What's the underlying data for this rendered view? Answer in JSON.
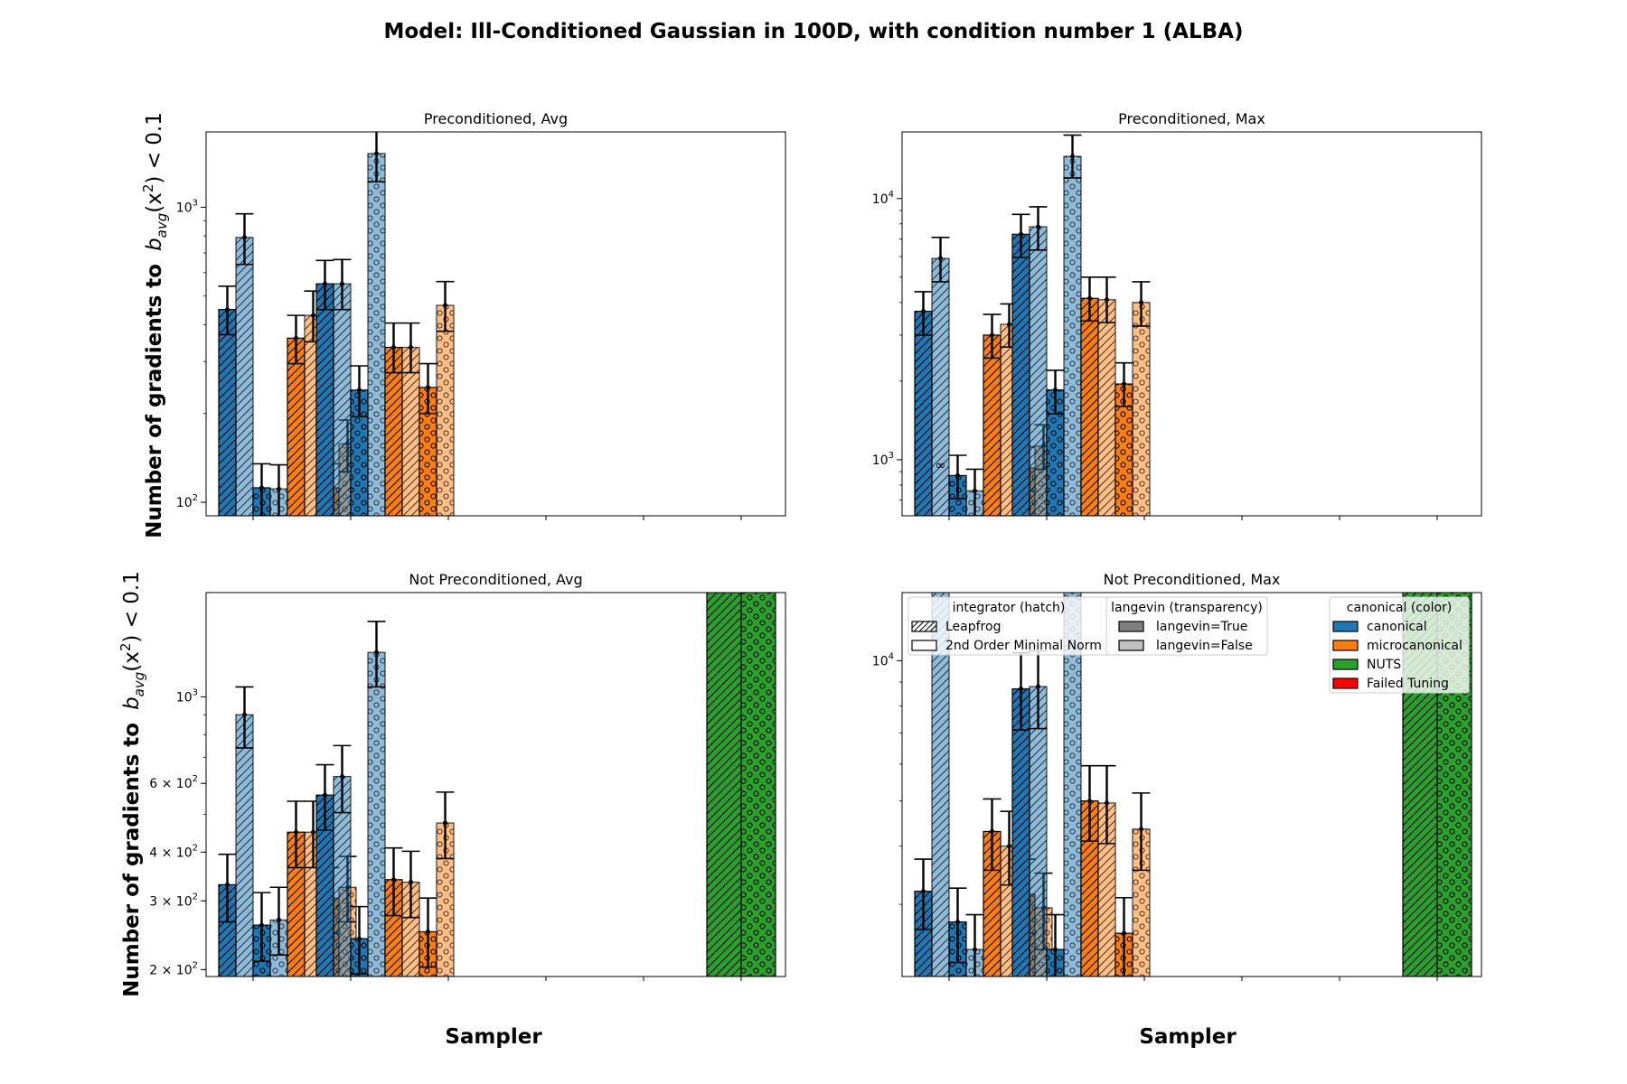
{
  "figure": {
    "title": "Model: Ill-Conditioned Gaussian in 100D, with condition number 1 (ALBA)",
    "ylabel_bold": "Number of gradients to",
    "ylabel_math_b": "b",
    "ylabel_math_sub": "avg",
    "ylabel_math_rest": "(x",
    "ylabel_math_sup": "2",
    "ylabel_math_tail": ") < 0.1",
    "xlabel": "Sampler"
  },
  "colors": {
    "canonical": "#1f77b4",
    "microcanonical": "#ff7f0e",
    "NUTS": "#2ca02c",
    "Failed Tuning": "#ff0000",
    "edge": "#000000"
  },
  "legend": {
    "integrator": {
      "title": "integrator (hatch)",
      "entries": [
        {
          "label": "Leapfrog",
          "hatch": "diag"
        },
        {
          "label": "2nd Order Minimal Norm",
          "hatch": "none"
        }
      ]
    },
    "langevin": {
      "title": "langevin (transparency)",
      "entries": [
        {
          "label": "langevin=True",
          "alpha": 1.0
        },
        {
          "label": "langevin=False",
          "alpha": 0.5
        }
      ]
    },
    "canonical": {
      "title": "canonical (color)",
      "entries": [
        {
          "label": "canonical",
          "color": "canonical"
        },
        {
          "label": "microcanonical",
          "color": "microcanonical"
        },
        {
          "label": "NUTS",
          "color": "NUTS"
        },
        {
          "label": "Failed Tuning",
          "color": "Failed Tuning"
        }
      ]
    }
  },
  "chart_data": [
    {
      "type": "bar",
      "title": "Preconditioned, Avg",
      "yscale": "log",
      "ylim": [
        90,
        1800
      ],
      "ylabel": "Number of gradients to b_avg(x^2) < 0.1",
      "xlabel": "Sampler",
      "yticks": [
        {
          "value": 100,
          "mant": "",
          "exp": "2"
        },
        {
          "value": 1000,
          "mant": "",
          "exp": "3"
        }
      ],
      "groups": 6,
      "series": [
        {
          "group": 0,
          "slot": 0,
          "color": "canonical",
          "hatch": "diag",
          "alpha": 1.0,
          "value": 450,
          "err": [
            370,
            540
          ]
        },
        {
          "group": 0,
          "slot": 1,
          "color": "canonical",
          "hatch": "diag",
          "alpha": 0.5,
          "value": 790,
          "err": [
            640,
            950
          ]
        },
        {
          "group": 0,
          "slot": 2,
          "color": "canonical",
          "hatch": "dots",
          "alpha": 1.0,
          "value": 112,
          "err": [
            90,
            135
          ]
        },
        {
          "group": 0,
          "slot": 3,
          "color": "canonical",
          "hatch": "dots",
          "alpha": 0.5,
          "value": 111,
          "err": [
            90,
            134
          ]
        },
        {
          "group": 0,
          "slot": 4,
          "color": "microcanonical",
          "hatch": "diag",
          "alpha": 1.0,
          "value": 360,
          "err": [
            295,
            430
          ]
        },
        {
          "group": 0,
          "slot": 5,
          "color": "microcanonical",
          "hatch": "diag",
          "alpha": 0.5,
          "value": 430,
          "err": [
            350,
            520
          ]
        },
        {
          "group": 0,
          "slot": 6,
          "color": "microcanonical",
          "hatch": "dots",
          "alpha": 1.0,
          "value": 112,
          "err": [
            90,
            135
          ]
        },
        {
          "group": 0,
          "slot": 7,
          "color": "microcanonical",
          "hatch": "dots",
          "alpha": 0.5,
          "value": 158,
          "err": [
            127,
            190
          ]
        },
        {
          "group": 1,
          "slot": 0,
          "color": "canonical",
          "hatch": "diag",
          "alpha": 1.0,
          "value": 550,
          "err": [
            450,
            660
          ]
        },
        {
          "group": 1,
          "slot": 1,
          "color": "canonical",
          "hatch": "diag",
          "alpha": 0.5,
          "value": 550,
          "err": [
            450,
            665
          ]
        },
        {
          "group": 1,
          "slot": 2,
          "color": "canonical",
          "hatch": "dots",
          "alpha": 1.0,
          "value": 240,
          "err": [
            195,
            290
          ]
        },
        {
          "group": 1,
          "slot": 3,
          "color": "canonical",
          "hatch": "dots",
          "alpha": 0.5,
          "value": 1520,
          "err": [
            1220,
            1850
          ]
        },
        {
          "group": 1,
          "slot": 4,
          "color": "microcanonical",
          "hatch": "diag",
          "alpha": 1.0,
          "value": 335,
          "err": [
            275,
            405
          ]
        },
        {
          "group": 1,
          "slot": 5,
          "color": "microcanonical",
          "hatch": "diag",
          "alpha": 0.5,
          "value": 335,
          "err": [
            275,
            405
          ]
        },
        {
          "group": 1,
          "slot": 6,
          "color": "microcanonical",
          "hatch": "dots",
          "alpha": 1.0,
          "value": 245,
          "err": [
            200,
            295
          ]
        },
        {
          "group": 1,
          "slot": 7,
          "color": "microcanonical",
          "hatch": "dots",
          "alpha": 0.5,
          "value": 465,
          "err": [
            380,
            560
          ]
        }
      ],
      "annotations": []
    },
    {
      "type": "bar",
      "title": "Preconditioned, Max",
      "yscale": "log",
      "ylim": [
        610,
        18000
      ],
      "ylabel": "",
      "xlabel": "Sampler",
      "yticks": [
        {
          "value": 1000,
          "mant": "",
          "exp": "3"
        },
        {
          "value": 10000,
          "mant": "",
          "exp": "4"
        }
      ],
      "groups": 6,
      "series": [
        {
          "group": 0,
          "slot": 0,
          "color": "canonical",
          "hatch": "diag",
          "alpha": 1.0,
          "value": 3700,
          "err": [
            3000,
            4400
          ]
        },
        {
          "group": 0,
          "slot": 1,
          "color": "canonical",
          "hatch": "diag",
          "alpha": 0.5,
          "value": 5900,
          "err": [
            4800,
            7100
          ]
        },
        {
          "group": 0,
          "slot": 2,
          "color": "canonical",
          "hatch": "dots",
          "alpha": 1.0,
          "value": 870,
          "err": [
            710,
            1040
          ]
        },
        {
          "group": 0,
          "slot": 3,
          "color": "canonical",
          "hatch": "dots",
          "alpha": 0.5,
          "value": 760,
          "err": [
            610,
            920
          ]
        },
        {
          "group": 0,
          "slot": 4,
          "color": "microcanonical",
          "hatch": "diag",
          "alpha": 1.0,
          "value": 3000,
          "err": [
            2450,
            3600
          ]
        },
        {
          "group": 0,
          "slot": 5,
          "color": "microcanonical",
          "hatch": "diag",
          "alpha": 0.5,
          "value": 3300,
          "err": [
            2700,
            3950
          ]
        },
        {
          "group": 0,
          "slot": 6,
          "color": "microcanonical",
          "hatch": "dots",
          "alpha": 1.0,
          "value": 930,
          "err": [
            760,
            1120
          ]
        },
        {
          "group": 0,
          "slot": 7,
          "color": "microcanonical",
          "hatch": "dots",
          "alpha": 0.5,
          "value": 1130,
          "err": [
            920,
            1360
          ]
        },
        {
          "group": 1,
          "slot": 0,
          "color": "canonical",
          "hatch": "diag",
          "alpha": 1.0,
          "value": 7300,
          "err": [
            5950,
            8700
          ]
        },
        {
          "group": 1,
          "slot": 1,
          "color": "canonical",
          "hatch": "diag",
          "alpha": 0.5,
          "value": 7800,
          "err": [
            6350,
            9300
          ]
        },
        {
          "group": 1,
          "slot": 2,
          "color": "canonical",
          "hatch": "dots",
          "alpha": 1.0,
          "value": 1850,
          "err": [
            1500,
            2200
          ]
        },
        {
          "group": 1,
          "slot": 3,
          "color": "canonical",
          "hatch": "dots",
          "alpha": 0.5,
          "value": 14500,
          "err": [
            12000,
            17500
          ]
        },
        {
          "group": 1,
          "slot": 4,
          "color": "microcanonical",
          "hatch": "diag",
          "alpha": 1.0,
          "value": 4150,
          "err": [
            3400,
            5000
          ]
        },
        {
          "group": 1,
          "slot": 5,
          "color": "microcanonical",
          "hatch": "diag",
          "alpha": 0.5,
          "value": 4100,
          "err": [
            3350,
            5000
          ]
        },
        {
          "group": 1,
          "slot": 6,
          "color": "microcanonical",
          "hatch": "dots",
          "alpha": 1.0,
          "value": 1950,
          "err": [
            1600,
            2350
          ]
        },
        {
          "group": 1,
          "slot": 7,
          "color": "microcanonical",
          "hatch": "dots",
          "alpha": 0.5,
          "value": 4000,
          "err": [
            3250,
            4800
          ]
        }
      ],
      "annotations": [
        {
          "group": 0,
          "slot": 1,
          "text": "∞",
          "value": 920
        }
      ]
    },
    {
      "type": "bar",
      "title": "Not Preconditioned, Avg",
      "yscale": "log",
      "ylim": [
        192,
        1850
      ],
      "ylabel": "Number of gradients to b_avg(x^2) < 0.1",
      "xlabel": "Sampler",
      "yticks": [
        {
          "value": 200,
          "mant": "2 × ",
          "exp": "2"
        },
        {
          "value": 300,
          "mant": "3 × ",
          "exp": "2"
        },
        {
          "value": 400,
          "mant": "4 × ",
          "exp": "2"
        },
        {
          "value": 600,
          "mant": "6 × ",
          "exp": "2"
        },
        {
          "value": 1000,
          "mant": "",
          "exp": "3"
        }
      ],
      "groups": 6,
      "series": [
        {
          "group": 0,
          "slot": 0,
          "color": "canonical",
          "hatch": "diag",
          "alpha": 1.0,
          "value": 330,
          "err": [
            265,
            395
          ]
        },
        {
          "group": 0,
          "slot": 1,
          "color": "canonical",
          "hatch": "diag",
          "alpha": 0.5,
          "value": 900,
          "err": [
            740,
            1060
          ]
        },
        {
          "group": 0,
          "slot": 2,
          "color": "canonical",
          "hatch": "dots",
          "alpha": 1.0,
          "value": 260,
          "err": [
            210,
            315
          ]
        },
        {
          "group": 0,
          "slot": 3,
          "color": "canonical",
          "hatch": "dots",
          "alpha": 0.5,
          "value": 268,
          "err": [
            218,
            325
          ]
        },
        {
          "group": 0,
          "slot": 4,
          "color": "microcanonical",
          "hatch": "diag",
          "alpha": 1.0,
          "value": 450,
          "err": [
            365,
            540
          ]
        },
        {
          "group": 0,
          "slot": 5,
          "color": "microcanonical",
          "hatch": "diag",
          "alpha": 0.5,
          "value": 450,
          "err": [
            365,
            540
          ]
        },
        {
          "group": 0,
          "slot": 6,
          "color": "microcanonical",
          "hatch": "dots",
          "alpha": 1.0,
          "value": 305,
          "err": [
            248,
            365
          ]
        },
        {
          "group": 0,
          "slot": 7,
          "color": "microcanonical",
          "hatch": "dots",
          "alpha": 0.5,
          "value": 325,
          "err": [
            265,
            390
          ]
        },
        {
          "group": 1,
          "slot": 0,
          "color": "canonical",
          "hatch": "diag",
          "alpha": 1.0,
          "value": 560,
          "err": [
            455,
            670
          ]
        },
        {
          "group": 1,
          "slot": 1,
          "color": "canonical",
          "hatch": "diag",
          "alpha": 0.5,
          "value": 625,
          "err": [
            505,
            750
          ]
        },
        {
          "group": 1,
          "slot": 2,
          "color": "canonical",
          "hatch": "dots",
          "alpha": 1.0,
          "value": 240,
          "err": [
            195,
            290
          ]
        },
        {
          "group": 1,
          "slot": 3,
          "color": "canonical",
          "hatch": "dots",
          "alpha": 0.5,
          "value": 1300,
          "err": [
            1060,
            1560
          ]
        },
        {
          "group": 1,
          "slot": 4,
          "color": "microcanonical",
          "hatch": "diag",
          "alpha": 1.0,
          "value": 340,
          "err": [
            275,
            410
          ]
        },
        {
          "group": 1,
          "slot": 5,
          "color": "microcanonical",
          "hatch": "diag",
          "alpha": 0.5,
          "value": 335,
          "err": [
            272,
            402
          ]
        },
        {
          "group": 1,
          "slot": 6,
          "color": "microcanonical",
          "hatch": "dots",
          "alpha": 1.0,
          "value": 250,
          "err": [
            203,
            305
          ]
        },
        {
          "group": 1,
          "slot": 7,
          "color": "microcanonical",
          "hatch": "dots",
          "alpha": 0.5,
          "value": 475,
          "err": [
            385,
            570
          ]
        },
        {
          "group": 5,
          "slot": 0,
          "color": "NUTS",
          "hatch": "diag",
          "alpha": 1.0,
          "value": 3000,
          "err": null,
          "wide": true
        },
        {
          "group": 5,
          "slot": 1,
          "color": "NUTS",
          "hatch": "dots",
          "alpha": 1.0,
          "value": 3000,
          "err": null,
          "wide": true
        }
      ],
      "annotations": []
    },
    {
      "type": "bar",
      "title": "Not Preconditioned, Max",
      "yscale": "log",
      "ylim": [
        2100,
        14000
      ],
      "ylabel": "",
      "xlabel": "Sampler",
      "yticks": [
        {
          "value": 10000,
          "mant": "",
          "exp": "4"
        }
      ],
      "groups": 6,
      "series": [
        {
          "group": 0,
          "slot": 0,
          "color": "canonical",
          "hatch": "diag",
          "alpha": 1.0,
          "value": 3200,
          "err": [
            2650,
            3750
          ]
        },
        {
          "group": 0,
          "slot": 1,
          "color": "canonical",
          "hatch": "diag",
          "alpha": 0.5,
          "value": 30000,
          "err": null
        },
        {
          "group": 0,
          "slot": 2,
          "color": "canonical",
          "hatch": "dots",
          "alpha": 1.0,
          "value": 2750,
          "err": [
            2250,
            3250
          ]
        },
        {
          "group": 0,
          "slot": 3,
          "color": "canonical",
          "hatch": "dots",
          "alpha": 0.5,
          "value": 2400,
          "err": [
            1950,
            2850
          ]
        },
        {
          "group": 0,
          "slot": 4,
          "color": "microcanonical",
          "hatch": "diag",
          "alpha": 1.0,
          "value": 4300,
          "err": [
            3550,
            5050
          ]
        },
        {
          "group": 0,
          "slot": 5,
          "color": "microcanonical",
          "hatch": "diag",
          "alpha": 0.5,
          "value": 4000,
          "err": [
            3300,
            4750
          ]
        },
        {
          "group": 0,
          "slot": 6,
          "color": "microcanonical",
          "hatch": "dots",
          "alpha": 1.0,
          "value": 3150,
          "err": [
            2600,
            3750
          ]
        },
        {
          "group": 0,
          "slot": 7,
          "color": "microcanonical",
          "hatch": "dots",
          "alpha": 0.5,
          "value": 2950,
          "err": [
            2400,
            3500
          ]
        },
        {
          "group": 1,
          "slot": 0,
          "color": "canonical",
          "hatch": "diag",
          "alpha": 1.0,
          "value": 8700,
          "err": [
            7100,
            10400
          ]
        },
        {
          "group": 1,
          "slot": 1,
          "color": "canonical",
          "hatch": "diag",
          "alpha": 0.5,
          "value": 8800,
          "err": [
            7150,
            10500
          ]
        },
        {
          "group": 1,
          "slot": 2,
          "color": "canonical",
          "hatch": "dots",
          "alpha": 1.0,
          "value": 2400,
          "err": [
            1950,
            2850
          ]
        },
        {
          "group": 1,
          "slot": 3,
          "color": "canonical",
          "hatch": "dots",
          "alpha": 0.5,
          "value": 30000,
          "err": null
        },
        {
          "group": 1,
          "slot": 4,
          "color": "microcanonical",
          "hatch": "diag",
          "alpha": 1.0,
          "value": 5000,
          "err": [
            4100,
            5950
          ]
        },
        {
          "group": 1,
          "slot": 5,
          "color": "microcanonical",
          "hatch": "diag",
          "alpha": 0.5,
          "value": 4950,
          "err": [
            4050,
            5950
          ]
        },
        {
          "group": 1,
          "slot": 6,
          "color": "microcanonical",
          "hatch": "dots",
          "alpha": 1.0,
          "value": 2600,
          "err": [
            2100,
            3100
          ]
        },
        {
          "group": 1,
          "slot": 7,
          "color": "microcanonical",
          "hatch": "dots",
          "alpha": 0.5,
          "value": 4350,
          "err": [
            3550,
            5200
          ]
        },
        {
          "group": 5,
          "slot": 0,
          "color": "NUTS",
          "hatch": "diag",
          "alpha": 1.0,
          "value": 30000,
          "err": null,
          "wide": true
        },
        {
          "group": 5,
          "slot": 1,
          "color": "NUTS",
          "hatch": "dots",
          "alpha": 1.0,
          "value": 30000,
          "err": null,
          "wide": true
        }
      ],
      "annotations": []
    }
  ]
}
